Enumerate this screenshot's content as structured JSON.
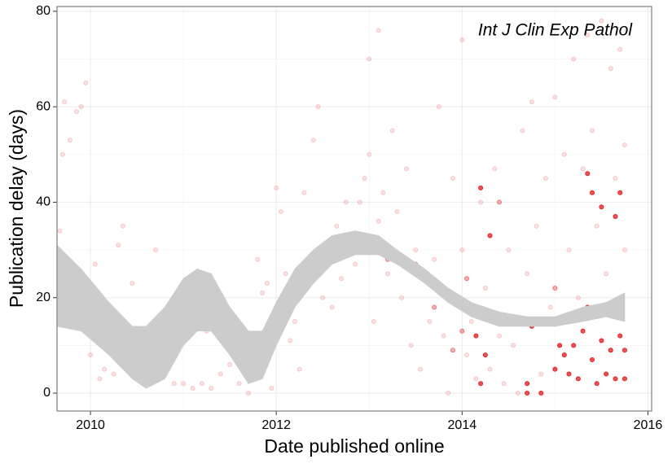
{
  "chart_data": {
    "type": "scatter",
    "xlabel": "Date published online",
    "ylabel": "Publication delay (days)",
    "annotation": "Int J Clin Exp Pathol",
    "xlim": [
      2009.64,
      2016.04
    ],
    "ylim": [
      -3.75,
      81
    ],
    "xticks": [
      2010,
      2012,
      2014,
      2016
    ],
    "yticks": [
      0,
      20,
      40,
      60,
      80
    ],
    "xminorticks": [
      2011,
      2013,
      2015
    ],
    "yminorticks": [
      10,
      30,
      50,
      70
    ],
    "grid": true,
    "point_color": "#e31a1c",
    "series": [
      {
        "alpha": 0.13,
        "x": [
          2009.67,
          2009.7,
          2009.72,
          2009.78,
          2009.85,
          2009.9,
          2009.95,
          2009.8,
          2009.9,
          2010.0,
          2010.05,
          2009.75,
          2010.1,
          2010.15,
          2010.25,
          2010.35,
          2010.3,
          2010.4,
          2010.45,
          2010.5,
          2010.55,
          2010.6,
          2010.7,
          2010.8,
          2010.9,
          2011.0,
          2011.1,
          2011.2,
          2011.3,
          2011.15,
          2011.25,
          2011.4,
          2011.5,
          2011.6,
          2011.7,
          2011.75,
          2011.85,
          2011.9,
          2011.95,
          2011.8,
          2012.0,
          2012.05,
          2012.1,
          2012.15,
          2012.2,
          2012.25,
          2012.3,
          2012.35,
          2012.4,
          2012.45,
          2012.5,
          2012.55,
          2012.6,
          2012.65,
          2012.7,
          2012.75,
          2012.8,
          2012.85,
          2012.9,
          2012.95,
          2013.0,
          2013.0,
          2013.05,
          2013.1,
          2013.1,
          2013.15,
          2013.2,
          2013.25,
          2013.3,
          2013.35,
          2013.4,
          2013.45,
          2013.5,
          2013.55,
          2013.6,
          2013.65,
          2013.7,
          2013.75,
          2013.8,
          2013.85,
          2013.9,
          2013.95,
          2014.0,
          2014.0,
          2014.05,
          2014.1,
          2014.15,
          2014.2,
          2014.25,
          2014.3,
          2014.35,
          2014.4,
          2014.45,
          2014.5,
          2014.55,
          2014.6,
          2014.65,
          2014.7,
          2014.75,
          2014.8,
          2014.85,
          2014.9,
          2014.95,
          2015.0,
          2015.05,
          2015.1,
          2015.15,
          2015.2,
          2015.25,
          2015.3,
          2015.35,
          2015.4,
          2015.45,
          2015.5,
          2015.55,
          2015.6,
          2015.65,
          2015.7,
          2015.75,
          2015.75
        ],
        "y": [
          34,
          50,
          61,
          53,
          59,
          60,
          65,
          20,
          23,
          8,
          27,
          18,
          3,
          5,
          4,
          35,
          31,
          9,
          23,
          12,
          3,
          5,
          30,
          16,
          2,
          2,
          1,
          2,
          1,
          23,
          13,
          4,
          6,
          2,
          0,
          8,
          21,
          23,
          1,
          28,
          43,
          38,
          25,
          11,
          15,
          5,
          42,
          27,
          53,
          60,
          20,
          30,
          18,
          35,
          24,
          40,
          32,
          27,
          40,
          45,
          70,
          50,
          15,
          76,
          36,
          42,
          25,
          55,
          38,
          20,
          47,
          10,
          30,
          5,
          25,
          15,
          28,
          60,
          12,
          0,
          45,
          20,
          30,
          74,
          8,
          15,
          3,
          40,
          22,
          5,
          47,
          12,
          2,
          30,
          10,
          0,
          55,
          25,
          61,
          35,
          4,
          45,
          18,
          62,
          10,
          50,
          30,
          70,
          20,
          47,
          75,
          55,
          35,
          78,
          25,
          68,
          45,
          72,
          30,
          52
        ]
      },
      {
        "alpha": 0.35,
        "x": [
          2013.5,
          2013.7,
          2014.0,
          2013.9,
          2012.8,
          2012.9,
          2012.95,
          2013.2,
          2014.4,
          2014.05,
          2015.0
        ],
        "y": [
          27,
          18,
          13,
          9,
          33,
          33,
          30,
          28,
          40,
          24,
          22
        ]
      },
      {
        "alpha": 0.75,
        "x": [
          2014.7,
          2014.7,
          2014.75,
          2014.85,
          2015.0,
          2015.05,
          2015.1,
          2015.15,
          2015.2,
          2015.25,
          2015.3,
          2015.35,
          2015.35,
          2015.4,
          2015.45,
          2015.5,
          2015.5,
          2015.55,
          2015.6,
          2015.65,
          2015.7,
          2015.7,
          2015.75,
          2015.75,
          2014.2,
          2014.2,
          2014.3,
          2015.4,
          2015.65,
          2014.15,
          2014.25
        ],
        "y": [
          0,
          2,
          14,
          0,
          5,
          10,
          8,
          4,
          10,
          3,
          13,
          18,
          46,
          7,
          2,
          39,
          11,
          4,
          9,
          3,
          42,
          12,
          9,
          3,
          43,
          2,
          33,
          42,
          37,
          12,
          8
        ]
      }
    ],
    "band": {
      "color": "#cccccc",
      "x": [
        2009.64,
        2009.9,
        2010.2,
        2010.45,
        2010.6,
        2010.8,
        2011.0,
        2011.15,
        2011.3,
        2011.5,
        2011.7,
        2011.85,
        2012.0,
        2012.2,
        2012.4,
        2012.6,
        2012.85,
        2013.1,
        2013.3,
        2013.6,
        2013.85,
        2014.1,
        2014.4,
        2014.7,
        2015.0,
        2015.3,
        2015.55,
        2015.75
      ],
      "lower": [
        14,
        13,
        8,
        3,
        1,
        3,
        10,
        13,
        13,
        8,
        2,
        3,
        10,
        18,
        23,
        27,
        29,
        29,
        27,
        23,
        19,
        16,
        14,
        14,
        14,
        15,
        16,
        15
      ],
      "upper": [
        31,
        26,
        19,
        14,
        14,
        18,
        24,
        26,
        25,
        18,
        13,
        13,
        19,
        26,
        30,
        33,
        34,
        33,
        30,
        26,
        22,
        19,
        17,
        16,
        16,
        18,
        19,
        21
      ]
    }
  }
}
